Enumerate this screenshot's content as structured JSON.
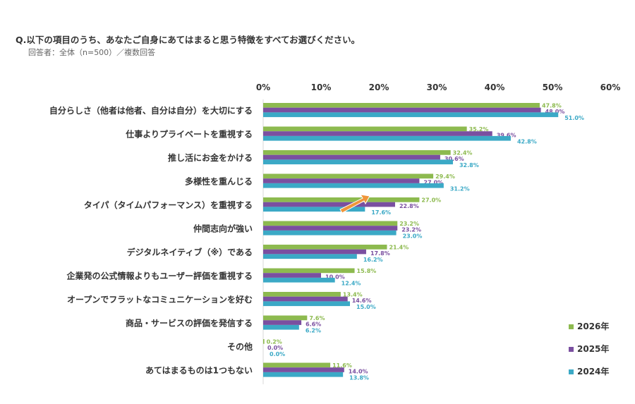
{
  "question": "Q.以下の項目のうち、あなたご自身にあてはまると思う特徴をすべてお選びください。",
  "respondents": "回答者：全体（n=500）／複数回答",
  "chart_data": {
    "type": "bar",
    "orientation": "horizontal",
    "xlim": [
      0,
      60
    ],
    "ticks": [
      0,
      10,
      20,
      30,
      40,
      50,
      60
    ],
    "tick_labels": [
      "0%",
      "10%",
      "20%",
      "30%",
      "40%",
      "50%",
      "60%"
    ],
    "categories": [
      "自分らしさ（他者は他者、自分は自分）を大切にする",
      "仕事よりプライベートを重視する",
      "推し活にお金をかける",
      "多様性を重んじる",
      "タイパ（タイムパフォーマンス）を重視する",
      "仲間志向が強い",
      "デジタルネイティブ（※）である",
      "企業発の公式情報よりもユーザー評価を重視する",
      "オープンでフラットなコミュニケーションを好む",
      "商品・サービスの評価を発信する",
      "その他",
      "あてはまるものは1つもない"
    ],
    "series": [
      {
        "name": "2026年",
        "color": "#8dba4f",
        "values": [
          47.8,
          35.2,
          32.4,
          29.4,
          27.0,
          23.2,
          21.4,
          15.8,
          13.4,
          7.6,
          0.2,
          11.6
        ]
      },
      {
        "name": "2025年",
        "color": "#7a4fa0",
        "values": [
          48.0,
          39.6,
          30.6,
          27.0,
          22.8,
          23.2,
          17.8,
          10.0,
          14.6,
          6.6,
          0.0,
          14.0
        ]
      },
      {
        "name": "2024年",
        "color": "#3ba9c6",
        "values": [
          51.0,
          42.8,
          32.8,
          31.2,
          17.6,
          23.0,
          16.2,
          12.4,
          15.0,
          6.2,
          0.0,
          13.8
        ]
      }
    ],
    "legend_position": "bottom-right",
    "annotation": {
      "type": "arrow",
      "color": "#f0953a",
      "category": "タイパ（タイムパフォーマンス）を重視する"
    }
  }
}
